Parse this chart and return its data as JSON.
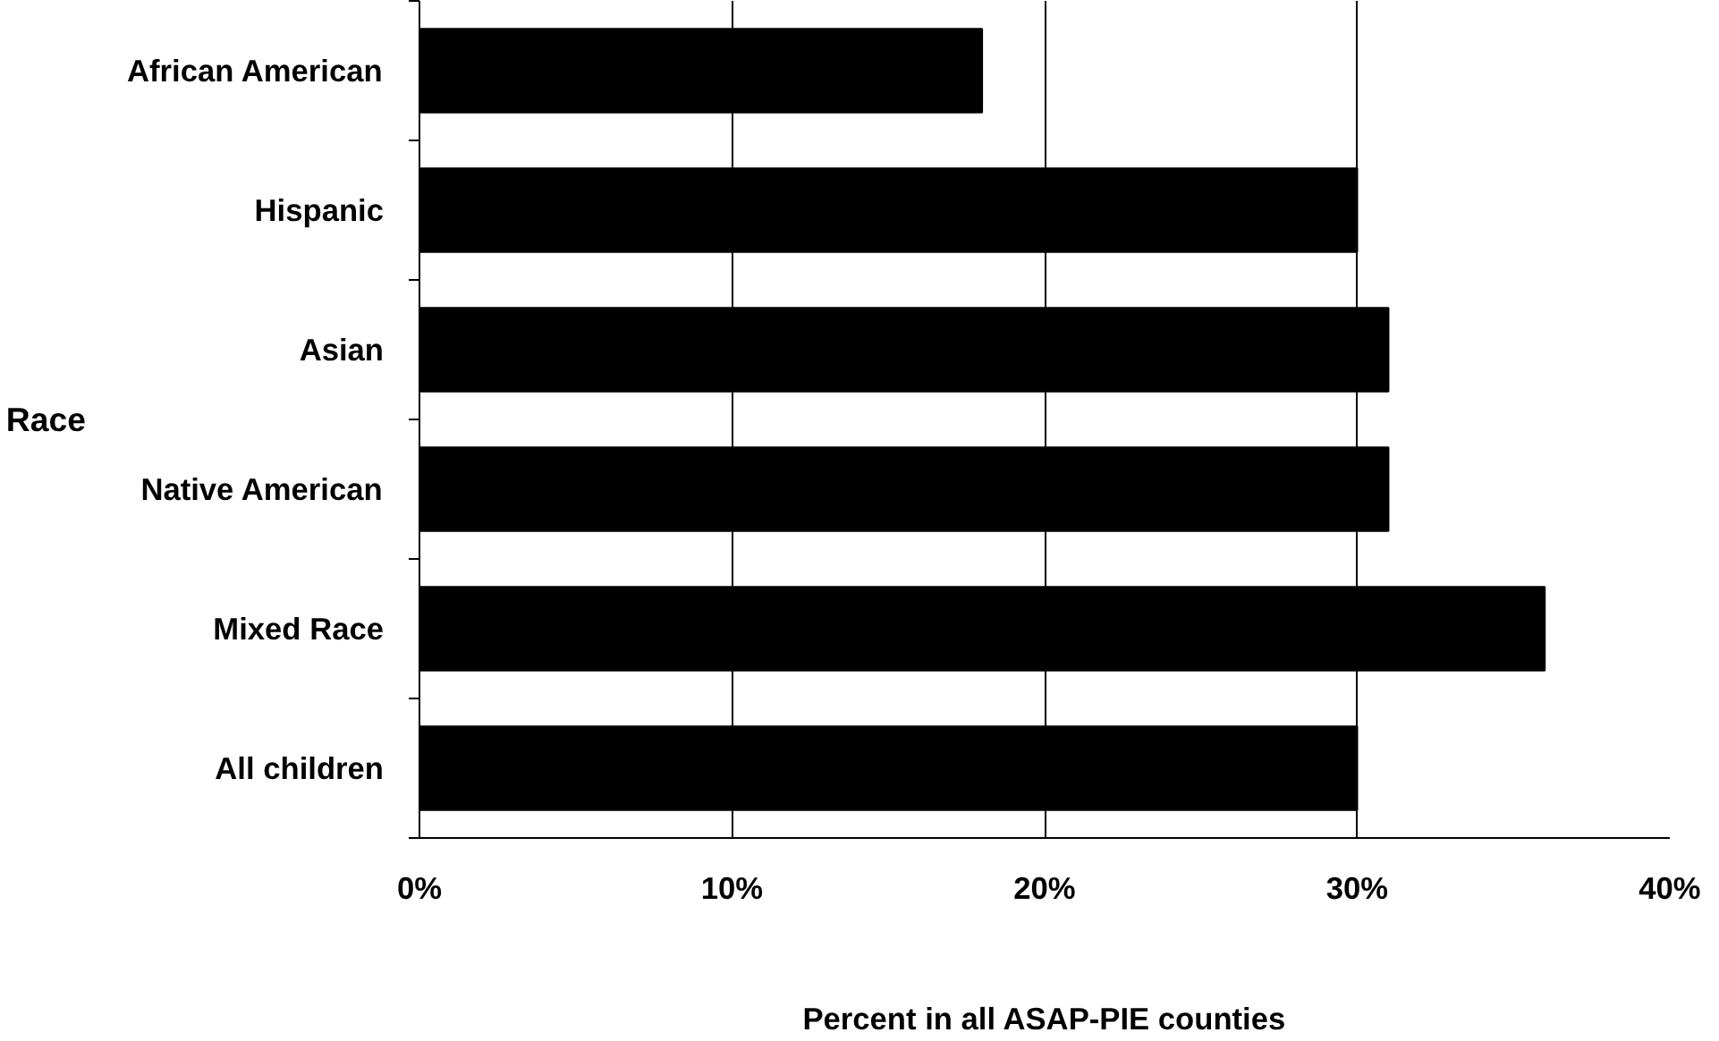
{
  "chart_data": {
    "type": "bar",
    "orientation": "horizontal",
    "categories": [
      "African American",
      "Hispanic",
      "Asian",
      "Native American",
      "Mixed Race",
      "All children"
    ],
    "values": [
      18,
      30,
      31,
      31,
      36,
      30
    ],
    "color": "#000000",
    "xlim": [
      0,
      40
    ],
    "xticks": [
      {
        "value": 0,
        "label": "0%"
      },
      {
        "value": 10,
        "label": "10%"
      },
      {
        "value": 20,
        "label": "20%"
      },
      {
        "value": 30,
        "label": "30%"
      },
      {
        "value": 40,
        "label": "40%"
      }
    ],
    "xlabel": "Percent in all ASAP-PIE counties",
    "ylabel": "Race",
    "grid": "x"
  }
}
